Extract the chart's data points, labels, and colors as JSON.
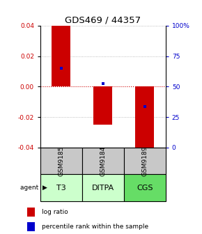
{
  "title": "GDS469 / 44357",
  "samples": [
    "GSM9185",
    "GSM9184",
    "GSM9189"
  ],
  "agents": [
    "T3",
    "DITPA",
    "CGS"
  ],
  "log_ratios": [
    0.04,
    -0.025,
    -0.044
  ],
  "percentile_ranks": [
    0.012,
    0.002,
    -0.013
  ],
  "ylim": [
    -0.04,
    0.04
  ],
  "yticks_left": [
    -0.04,
    -0.02,
    0,
    0.02,
    0.04
  ],
  "yticks_right": [
    0,
    25,
    50,
    75,
    100
  ],
  "bar_color": "#cc0000",
  "dot_color": "#0000cc",
  "grid_color": "#aaaaaa",
  "zero_line_color": "#cc0000",
  "sample_bg": "#c8c8c8",
  "agent_bg_light": "#ccffcc",
  "agent_bg_dark": "#66dd66",
  "title_fontsize": 9.5,
  "label_fontsize": 6.5,
  "tick_fontsize": 6.5,
  "legend_fontsize": 6.5,
  "agent_label_fontsize": 8
}
